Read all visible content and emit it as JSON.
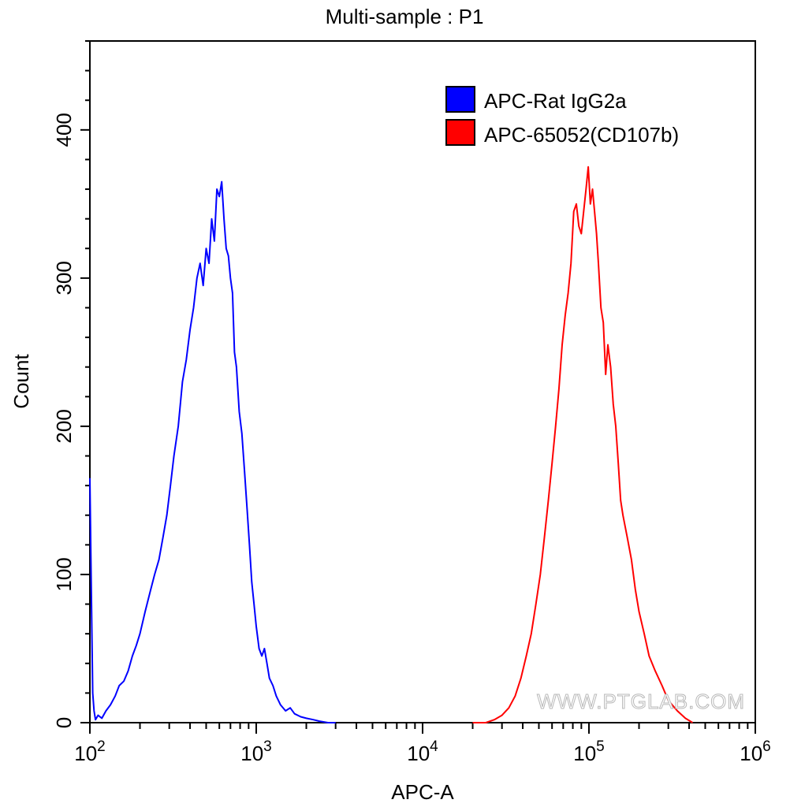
{
  "chart_data": {
    "type": "line",
    "subtype": "histogram",
    "title": "Multi-sample : P1",
    "xlabel": "APC-A",
    "ylabel": "Count",
    "xscale": "log",
    "xlim": [
      100,
      1000000
    ],
    "ylim": [
      0,
      460
    ],
    "x_ticks": [
      {
        "value": 100,
        "base": "10",
        "exp": "2"
      },
      {
        "value": 1000,
        "base": "10",
        "exp": "3"
      },
      {
        "value": 10000,
        "base": "10",
        "exp": "4"
      },
      {
        "value": 100000,
        "base": "10",
        "exp": "5"
      },
      {
        "value": 1000000,
        "base": "10",
        "exp": "6"
      }
    ],
    "y_ticks": [
      {
        "value": 0,
        "label": "0"
      },
      {
        "value": 100,
        "label": "100"
      },
      {
        "value": 200,
        "label": "200"
      },
      {
        "value": 300,
        "label": "300"
      },
      {
        "value": 400,
        "label": "400"
      }
    ],
    "legend_position": "top-right",
    "series": [
      {
        "name": "APC-Rat IgG2a",
        "color": "#0000ff",
        "x": [
          100,
          102,
          104,
          106,
          108,
          112,
          118,
          125,
          133,
          142,
          150,
          160,
          170,
          180,
          190,
          200,
          215,
          230,
          245,
          260,
          275,
          290,
          305,
          320,
          340,
          360,
          380,
          400,
          420,
          440,
          460,
          480,
          500,
          520,
          540,
          560,
          580,
          600,
          620,
          640,
          660,
          680,
          700,
          720,
          740,
          760,
          790,
          820,
          850,
          880,
          910,
          940,
          970,
          1000,
          1040,
          1080,
          1120,
          1160,
          1200,
          1260,
          1320,
          1400,
          1500,
          1600,
          1700,
          1850,
          2000,
          2200,
          2400,
          2700,
          3000
        ],
        "values": [
          165,
          90,
          20,
          8,
          2,
          5,
          3,
          8,
          12,
          18,
          25,
          28,
          35,
          45,
          52,
          60,
          75,
          88,
          100,
          110,
          125,
          140,
          160,
          180,
          200,
          230,
          245,
          265,
          280,
          300,
          310,
          295,
          320,
          310,
          340,
          325,
          360,
          355,
          365,
          340,
          320,
          315,
          300,
          290,
          250,
          240,
          210,
          195,
          170,
          145,
          120,
          95,
          80,
          65,
          50,
          45,
          50,
          40,
          30,
          25,
          18,
          12,
          8,
          10,
          6,
          4,
          3,
          2,
          1,
          0,
          0
        ]
      },
      {
        "name": "APC-65052(CD107b)",
        "color": "#ff0000",
        "x": [
          20000,
          24000,
          27000,
          30000,
          33000,
          36000,
          39000,
          42000,
          45000,
          48000,
          51000,
          54000,
          57000,
          60000,
          63000,
          66000,
          69000,
          72000,
          75000,
          78000,
          81000,
          84000,
          87000,
          90000,
          93000,
          96000,
          99000,
          102000,
          105000,
          108000,
          111000,
          114000,
          118000,
          122000,
          126000,
          130000,
          135000,
          140000,
          145000,
          150000,
          155000,
          160000,
          170000,
          180000,
          190000,
          200000,
          215000,
          230000,
          250000,
          275000,
          300000,
          340000,
          380000,
          420000
        ],
        "values": [
          0,
          0,
          2,
          5,
          10,
          18,
          30,
          45,
          60,
          80,
          100,
          125,
          150,
          175,
          200,
          225,
          255,
          275,
          290,
          310,
          345,
          350,
          335,
          330,
          345,
          360,
          375,
          350,
          360,
          345,
          330,
          310,
          280,
          270,
          235,
          255,
          240,
          215,
          200,
          175,
          150,
          140,
          125,
          110,
          90,
          75,
          60,
          45,
          35,
          25,
          15,
          8,
          3,
          0
        ]
      }
    ],
    "watermark": "WWW.PTGLAB.COM"
  }
}
